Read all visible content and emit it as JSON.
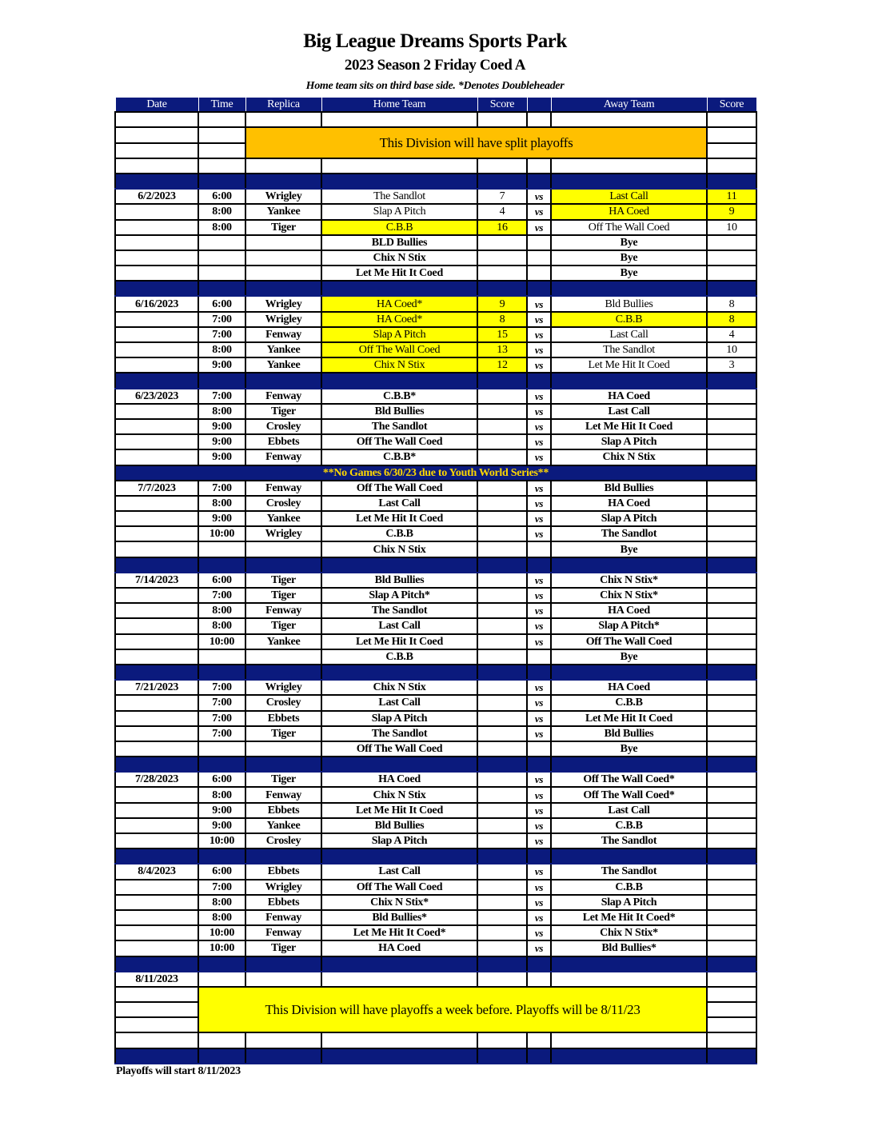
{
  "title": "Big League Dreams Sports Park",
  "subtitle": "2023 Season 2 Friday Coed A",
  "note": "Home team sits on third base side.  *Denotes Doubleheader",
  "columns": [
    "Date",
    "Time",
    "Replica",
    "Home Team",
    "Score",
    "",
    "Away Team",
    "Score"
  ],
  "top_banner": "This Division will have split playoffs",
  "bottom_banner": "This Division will have playoffs a week before. Playoffs will be 8/11/23",
  "bottom_banner_date": "8/11/2023",
  "vs_label": "vs",
  "colors": {
    "navy": "#0b1a7d",
    "orange": "#ffc000",
    "yellow": "#ffff00",
    "notice_text": "#ffd800"
  },
  "weeks": [
    {
      "date": "6/2/2023",
      "games": [
        {
          "time": "6:00",
          "field": "Wrigley",
          "home": "The Sandlot",
          "home_score": "7",
          "away": "Last Call",
          "away_score": "11",
          "highlight": "away"
        },
        {
          "time": "8:00",
          "field": "Yankee",
          "home": "Slap A Pitch",
          "home_score": "4",
          "away": "HA Coed",
          "away_score": "9",
          "highlight": "away"
        },
        {
          "time": "8:00",
          "field": "Tiger",
          "home": "C.B.B",
          "home_score": "16",
          "away": "Off The Wall Coed",
          "away_score": "10",
          "highlight": "home"
        },
        {
          "time": "",
          "field": "",
          "home": "BLD Bullies",
          "home_score": "",
          "away": "Bye",
          "away_score": "",
          "bye": true
        },
        {
          "time": "",
          "field": "",
          "home": "Chix N Stix",
          "home_score": "",
          "away": "Bye",
          "away_score": "",
          "bye": true
        },
        {
          "time": "",
          "field": "",
          "home": "Let Me Hit It Coed",
          "home_score": "",
          "away": "Bye",
          "away_score": "",
          "bye": true
        }
      ]
    },
    {
      "date": "6/16/2023",
      "games": [
        {
          "time": "6:00",
          "field": "Wrigley",
          "home": "HA Coed*",
          "home_score": "9",
          "away": "Bld Bullies",
          "away_score": "8",
          "highlight": "home"
        },
        {
          "time": "7:00",
          "field": "Wrigley",
          "home": "HA Coed*",
          "home_score": "8",
          "away": "C.B.B",
          "away_score": "8",
          "highlight": "both"
        },
        {
          "time": "7:00",
          "field": "Fenway",
          "home": "Slap A Pitch",
          "home_score": "15",
          "away": "Last Call",
          "away_score": "4",
          "highlight": "home"
        },
        {
          "time": "8:00",
          "field": "Yankee",
          "home": "Off The Wall Coed",
          "home_score": "13",
          "away": "The Sandlot",
          "away_score": "10",
          "highlight": "home"
        },
        {
          "time": "9:00",
          "field": "Yankee",
          "home": "Chix N Stix",
          "home_score": "12",
          "away": "Let Me Hit It Coed",
          "away_score": "3",
          "highlight": "home"
        }
      ]
    },
    {
      "date": "6/23/2023",
      "games": [
        {
          "time": "7:00",
          "field": "Fenway",
          "home": "C.B.B*",
          "home_score": "",
          "away": "HA Coed",
          "away_score": ""
        },
        {
          "time": "8:00",
          "field": "Tiger",
          "home": "Bld Bullies",
          "home_score": "",
          "away": "Last Call",
          "away_score": ""
        },
        {
          "time": "9:00",
          "field": "Crosley",
          "home": "The Sandlot",
          "home_score": "",
          "away": "Let Me Hit It Coed",
          "away_score": ""
        },
        {
          "time": "9:00",
          "field": "Ebbets",
          "home": "Off The Wall Coed",
          "home_score": "",
          "away": "Slap A Pitch",
          "away_score": ""
        },
        {
          "time": "9:00",
          "field": "Fenway",
          "home": "C.B.B*",
          "home_score": "",
          "away": "Chix N Stix",
          "away_score": ""
        }
      ],
      "separator_message": "**No Games 6/30/23 due to Youth World Series**"
    },
    {
      "date": "7/7/2023",
      "games": [
        {
          "time": "7:00",
          "field": "Fenway",
          "home": "Off The Wall Coed",
          "home_score": "",
          "away": "Bld Bullies",
          "away_score": ""
        },
        {
          "time": "8:00",
          "field": "Crosley",
          "home": "Last Call",
          "home_score": "",
          "away": "HA Coed",
          "away_score": ""
        },
        {
          "time": "9:00",
          "field": "Yankee",
          "home": "Let Me Hit It Coed",
          "home_score": "",
          "away": "Slap A Pitch",
          "away_score": ""
        },
        {
          "time": "10:00",
          "field": "Wrigley",
          "home": "C.B.B",
          "home_score": "",
          "away": "The Sandlot",
          "away_score": ""
        },
        {
          "time": "",
          "field": "",
          "home": "Chix N Stix",
          "home_score": "",
          "away": "Bye",
          "away_score": "",
          "bye": true
        }
      ]
    },
    {
      "date": "7/14/2023",
      "games": [
        {
          "time": "6:00",
          "field": "Tiger",
          "home": "Bld Bullies",
          "home_score": "",
          "away": "Chix N Stix*",
          "away_score": ""
        },
        {
          "time": "7:00",
          "field": "Tiger",
          "home": "Slap A Pitch*",
          "home_score": "",
          "away": "Chix N Stix*",
          "away_score": ""
        },
        {
          "time": "8:00",
          "field": "Fenway",
          "home": "The Sandlot",
          "home_score": "",
          "away": "HA Coed",
          "away_score": ""
        },
        {
          "time": "8:00",
          "field": "Tiger",
          "home": "Last Call",
          "home_score": "",
          "away": "Slap A Pitch*",
          "away_score": ""
        },
        {
          "time": "10:00",
          "field": "Yankee",
          "home": "Let Me Hit It Coed",
          "home_score": "",
          "away": "Off The Wall Coed",
          "away_score": ""
        },
        {
          "time": "",
          "field": "",
          "home": "C.B.B",
          "home_score": "",
          "away": "Bye",
          "away_score": "",
          "bye": true
        }
      ]
    },
    {
      "date": "7/21/2023",
      "games": [
        {
          "time": "7:00",
          "field": "Wrigley",
          "home": "Chix N Stix",
          "home_score": "",
          "away": "HA Coed",
          "away_score": ""
        },
        {
          "time": "7:00",
          "field": "Crosley",
          "home": "Last Call",
          "home_score": "",
          "away": "C.B.B",
          "away_score": ""
        },
        {
          "time": "7:00",
          "field": "Ebbets",
          "home": "Slap A Pitch",
          "home_score": "",
          "away": "Let Me Hit It Coed",
          "away_score": ""
        },
        {
          "time": "7:00",
          "field": "Tiger",
          "home": "The Sandlot",
          "home_score": "",
          "away": "Bld Bullies",
          "away_score": ""
        },
        {
          "time": "",
          "field": "",
          "home": "Off The Wall Coed",
          "home_score": "",
          "away": "Bye",
          "away_score": "",
          "bye": true
        }
      ]
    },
    {
      "date": "7/28/2023",
      "games": [
        {
          "time": "6:00",
          "field": "Tiger",
          "home": "HA Coed",
          "home_score": "",
          "away": "Off The Wall Coed*",
          "away_score": ""
        },
        {
          "time": "8:00",
          "field": "Fenway",
          "home": "Chix N Stix",
          "home_score": "",
          "away": "Off The Wall Coed*",
          "away_score": ""
        },
        {
          "time": "9:00",
          "field": "Ebbets",
          "home": "Let Me Hit It Coed",
          "home_score": "",
          "away": "Last Call",
          "away_score": ""
        },
        {
          "time": "9:00",
          "field": "Yankee",
          "home": "Bld Bullies",
          "home_score": "",
          "away": "C.B.B",
          "away_score": ""
        },
        {
          "time": "10:00",
          "field": "Crosley",
          "home": "Slap A Pitch",
          "home_score": "",
          "away": "The Sandlot",
          "away_score": ""
        }
      ]
    },
    {
      "date": "8/4/2023",
      "games": [
        {
          "time": "6:00",
          "field": "Ebbets",
          "home": "Last Call",
          "home_score": "",
          "away": "The Sandlot",
          "away_score": ""
        },
        {
          "time": "7:00",
          "field": "Wrigley",
          "home": "Off The Wall Coed",
          "home_score": "",
          "away": "C.B.B",
          "away_score": ""
        },
        {
          "time": "8:00",
          "field": "Ebbets",
          "home": "Chix N Stix*",
          "home_score": "",
          "away": "Slap A Pitch",
          "away_score": ""
        },
        {
          "time": "8:00",
          "field": "Fenway",
          "home": "Bld Bullies*",
          "home_score": "",
          "away": "Let Me Hit It Coed*",
          "away_score": ""
        },
        {
          "time": "10:00",
          "field": "Fenway",
          "home": "Let Me Hit It Coed*",
          "home_score": "",
          "away": "Chix N Stix*",
          "away_score": ""
        },
        {
          "time": "10:00",
          "field": "Tiger",
          "home": "HA Coed",
          "home_score": "",
          "away": "Bld Bullies*",
          "away_score": ""
        }
      ]
    }
  ],
  "footer": "Playoffs will start 8/11/2023"
}
